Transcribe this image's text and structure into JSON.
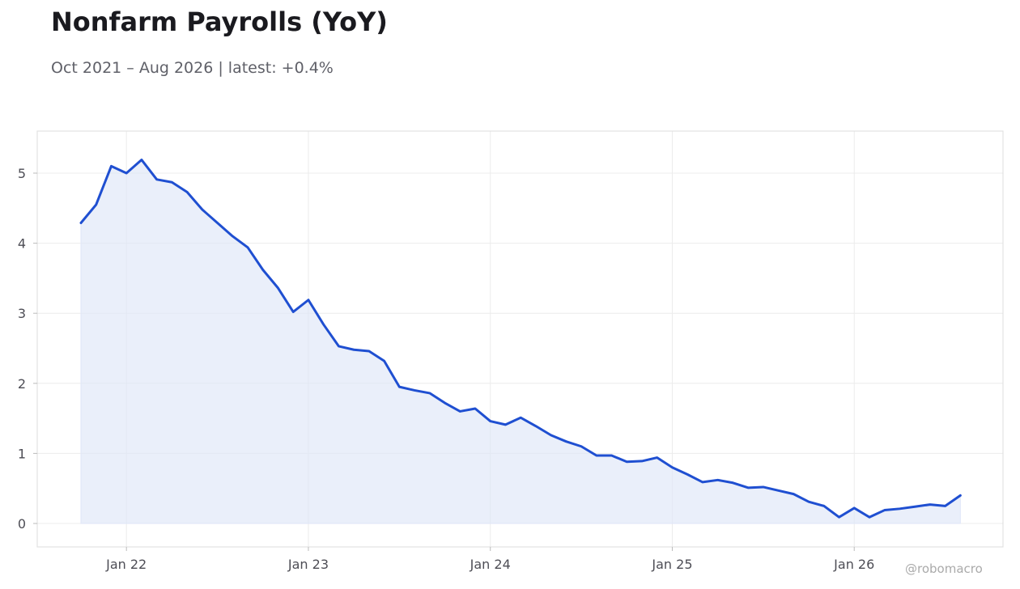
{
  "header": {
    "title": "Nonfarm Payrolls (YoY)",
    "subtitle": "Oct 2021 – Aug 2026 | latest: +0.4%"
  },
  "watermark": "@robomacro",
  "colors": {
    "line": "#1f4fd1",
    "fill": "#dfe6f8",
    "grid": "#ececec",
    "frame": "#dddddd"
  },
  "chart_data": {
    "type": "area",
    "title": "Nonfarm Payrolls (YoY)",
    "subtitle": "Oct 2021 – Aug 2026 | latest: +0.4%",
    "xlabel": "",
    "ylabel": "",
    "x_start": "2021-10",
    "x_end": "2026-08",
    "frequency": "monthly",
    "ylim": [
      -0.33,
      5.6
    ],
    "y_ticks": [
      0,
      1,
      2,
      3,
      4,
      5
    ],
    "x_ticks": [
      {
        "label": "Jan 22",
        "date": "2022-01"
      },
      {
        "label": "Jan 23",
        "date": "2023-01"
      },
      {
        "label": "Jan 24",
        "date": "2024-01"
      },
      {
        "label": "Jan 25",
        "date": "2025-01"
      },
      {
        "label": "Jan 26",
        "date": "2026-01"
      }
    ],
    "grid": true,
    "legend": "none",
    "series": [
      {
        "x": [
          "2021-10",
          "2021-11",
          "2021-12",
          "2022-01",
          "2022-02",
          "2022-03",
          "2022-04",
          "2022-05",
          "2022-06",
          "2022-07",
          "2022-08",
          "2022-09",
          "2022-10",
          "2022-11",
          "2022-12",
          "2023-01",
          "2023-02",
          "2023-03",
          "2023-04",
          "2023-05",
          "2023-06",
          "2023-07",
          "2023-08",
          "2023-09",
          "2023-10",
          "2023-11",
          "2023-12",
          "2024-01",
          "2024-02",
          "2024-03",
          "2024-04",
          "2024-05",
          "2024-06",
          "2024-07",
          "2024-08",
          "2024-09",
          "2024-10",
          "2024-11",
          "2024-12",
          "2025-01",
          "2025-02",
          "2025-03",
          "2025-04",
          "2025-05",
          "2025-06",
          "2025-07",
          "2025-08",
          "2025-09",
          "2025-10",
          "2025-11",
          "2025-12",
          "2026-01",
          "2026-02",
          "2026-03",
          "2026-04",
          "2026-05",
          "2026-06",
          "2026-07",
          "2026-08"
        ],
        "values": [
          4.29,
          4.55,
          5.1,
          5.0,
          5.19,
          4.91,
          4.87,
          4.73,
          4.48,
          4.29,
          4.1,
          3.94,
          3.62,
          3.36,
          3.02,
          3.19,
          2.84,
          2.53,
          2.48,
          2.46,
          2.32,
          1.95,
          1.9,
          1.86,
          1.72,
          1.6,
          1.64,
          1.46,
          1.41,
          1.51,
          1.39,
          1.26,
          1.17,
          1.1,
          0.97,
          0.97,
          0.88,
          0.89,
          0.94,
          0.8,
          0.7,
          0.59,
          0.62,
          0.58,
          0.51,
          0.52,
          0.47,
          0.42,
          0.31,
          0.25,
          0.09,
          0.22,
          0.09,
          0.19,
          0.21,
          0.24,
          0.27,
          0.25,
          0.4
        ]
      }
    ]
  }
}
